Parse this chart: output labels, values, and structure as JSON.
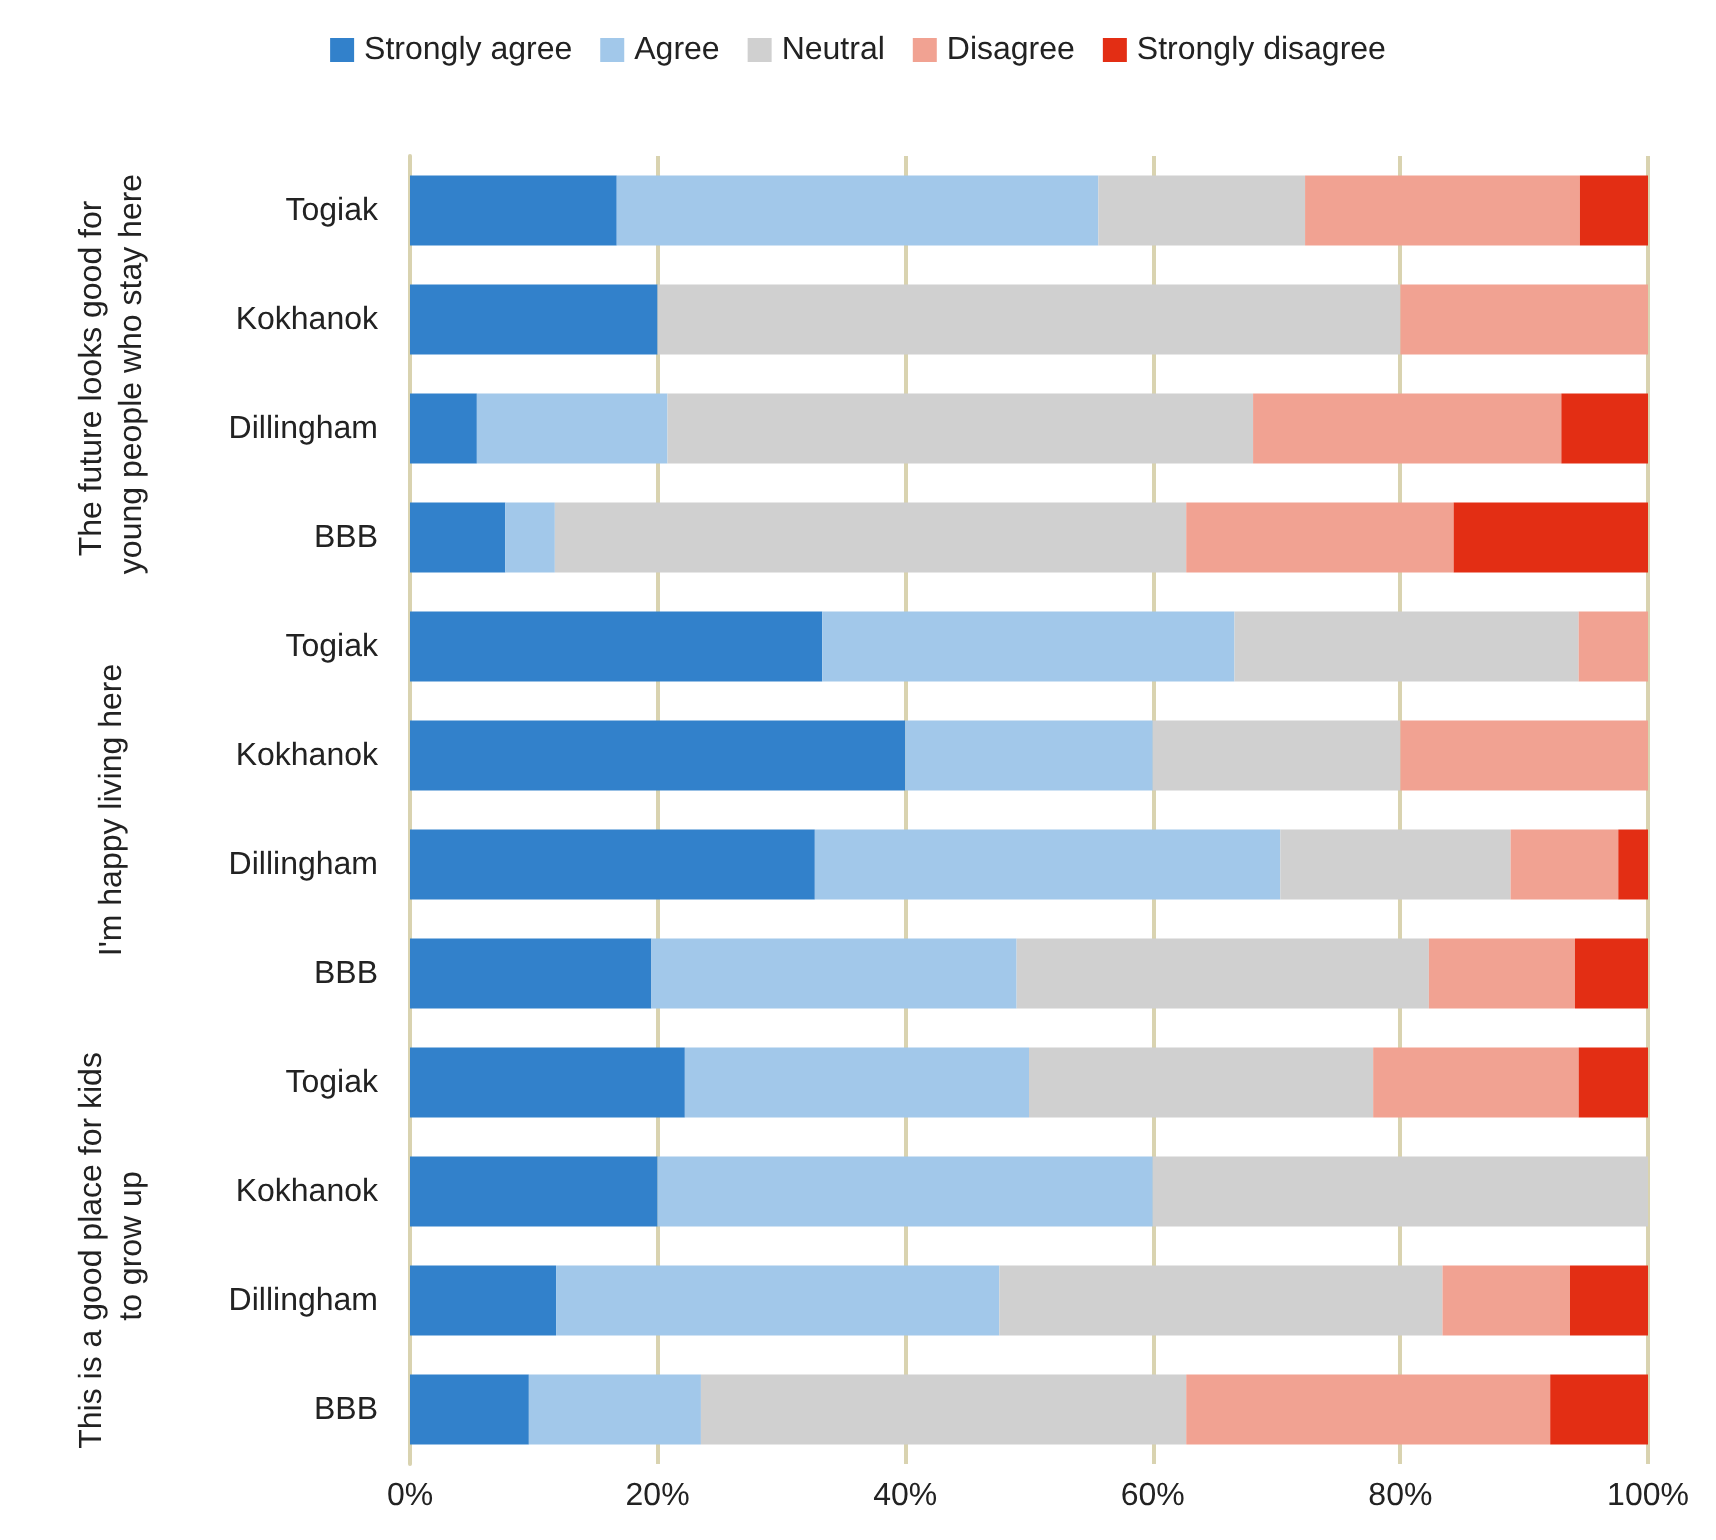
{
  "chart_data": {
    "type": "bar",
    "orientation": "horizontal",
    "stacked": true,
    "categories": [
      "Togiak",
      "Kokhanok",
      "Dillingham",
      "BBB",
      "Togiak",
      "Kokhanok",
      "Dillingham",
      "BBB",
      "Togiak",
      "Kokhanok",
      "Dillingham",
      "BBB"
    ],
    "series": [
      {
        "name": "Strongly agree",
        "color": "#3281cb",
        "values": [
          16.7,
          20,
          5.4,
          7.7,
          33.3,
          40,
          32.7,
          19.5,
          22.2,
          20,
          11.8,
          9.6
        ]
      },
      {
        "name": "Agree",
        "color": "#a2c8ea",
        "values": [
          38.9,
          0,
          15.4,
          4.0,
          33.3,
          20,
          37.6,
          29.5,
          27.8,
          40,
          35.8,
          13.9
        ]
      },
      {
        "name": "Neutral",
        "color": "#d0d0d0",
        "values": [
          16.7,
          60,
          47.3,
          51.0,
          27.8,
          20,
          18.6,
          33.3,
          27.8,
          40,
          35.8,
          39.2
        ]
      },
      {
        "name": "Disagree",
        "color": "#f1a292",
        "values": [
          22.2,
          20,
          24.9,
          21.6,
          5.6,
          20,
          8.7,
          11.8,
          16.6,
          0,
          10.3,
          29.4
        ]
      },
      {
        "name": "Strongly disagree",
        "color": "#e32e14",
        "values": [
          5.5,
          0,
          7.0,
          15.7,
          0,
          0,
          2.4,
          5.9,
          5.6,
          0,
          6.3,
          7.9
        ]
      }
    ],
    "xlim": [
      0,
      100
    ],
    "xticks": [
      {
        "value": 0,
        "label": "0%"
      },
      {
        "value": 20,
        "label": "20%"
      },
      {
        "value": 40,
        "label": "40%"
      },
      {
        "value": 60,
        "label": "60%"
      },
      {
        "value": 80,
        "label": "80%"
      },
      {
        "value": 100,
        "label": "100%"
      }
    ],
    "annotations": [
      "The future looks good for young people who stay here",
      "I'm happy living here",
      "This is a good place for kids to grow up"
    ],
    "grid": "x",
    "legend": "top"
  }
}
